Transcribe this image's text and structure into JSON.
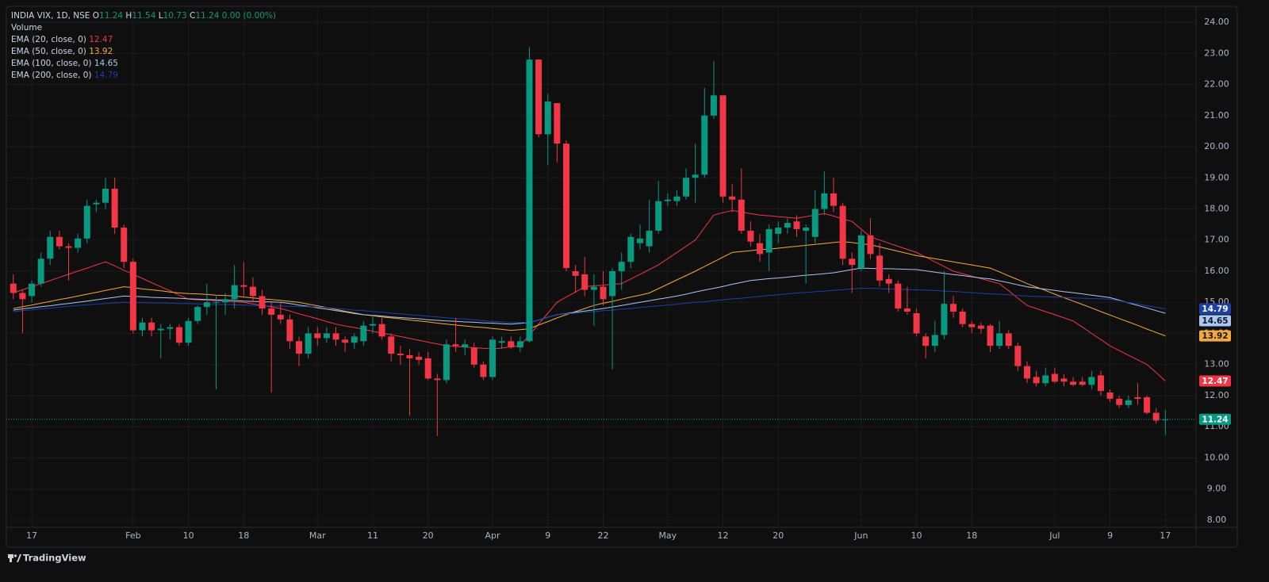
{
  "header": {
    "symbol": "INDIA VIX, 1D, NSE",
    "open_label": "O",
    "high_label": "H",
    "low_label": "L",
    "close_label": "C",
    "change": "0.00 (0.00%)",
    "volume": "Volume"
  },
  "branding": "TradingView",
  "chart_data": {
    "type": "candlestick",
    "categories": [
      null,
      null,
      "17",
      null,
      null,
      null,
      null,
      null,
      null,
      null,
      null,
      null,
      null,
      "Feb",
      null,
      null,
      null,
      null,
      null,
      "10",
      null,
      null,
      null,
      null,
      null,
      "18",
      null,
      null,
      null,
      null,
      null,
      null,
      null,
      "Mar",
      null,
      null,
      null,
      null,
      null,
      "11",
      null,
      null,
      null,
      null,
      null,
      "20",
      null,
      null,
      null,
      null,
      null,
      null,
      "Apr",
      null,
      null,
      null,
      null,
      null,
      "9",
      null,
      null,
      null,
      null,
      null,
      "22",
      null,
      null,
      null,
      null,
      null,
      null,
      "May",
      null,
      null,
      null,
      null,
      null,
      "12",
      null,
      null,
      null,
      null,
      null,
      "20",
      null,
      null,
      null,
      null,
      null,
      null,
      null,
      null,
      "Jun",
      null,
      null,
      null,
      null,
      null,
      "10",
      null,
      null,
      null,
      null,
      null,
      "18",
      null,
      null,
      null,
      null,
      null,
      null,
      null,
      null,
      "Jul",
      null,
      null,
      null,
      null,
      null,
      "9",
      null,
      null,
      null,
      null,
      null,
      "17"
    ],
    "open": [
      15.6,
      15.3,
      15.2,
      15.6,
      16.4,
      17.1,
      16.8,
      16.75,
      17.05,
      18.15,
      18.2,
      18.65,
      17.4,
      16.3,
      14.1,
      14.35,
      14.1,
      14.15,
      14.2,
      13.7,
      14.4,
      14.85,
      15.0,
      15.0,
      15.1,
      15.55,
      15.5,
      15.2,
      14.8,
      14.6,
      14.45,
      13.75,
      13.35,
      14.0,
      13.85,
      14.0,
      13.8,
      13.7,
      13.75,
      14.25,
      14.3,
      13.9,
      13.35,
      13.3,
      13.25,
      13.2,
      12.55,
      12.5,
      13.65,
      13.55,
      13.55,
      13.0,
      12.6,
      13.7,
      13.75,
      13.55,
      13.75,
      22.8,
      20.4,
      21.4,
      20.1,
      16.0,
      15.9,
      15.4,
      15.5,
      15.2,
      16.0,
      16.3,
      16.9,
      16.8,
      17.3,
      18.25,
      18.25,
      18.4,
      19.0,
      19.1,
      21.0,
      21.65,
      18.4,
      18.3,
      17.3,
      16.9,
      16.6,
      17.2,
      17.4,
      17.6,
      17.3,
      17.1,
      18.0,
      18.5,
      18.1,
      16.4,
      16.1,
      17.15,
      16.5,
      15.75,
      15.6,
      14.8,
      14.65,
      13.9,
      13.6,
      13.95,
      14.95,
      14.7,
      14.3,
      14.25,
      14.25,
      13.6,
      14.0,
      13.6,
      12.95,
      12.6,
      12.4,
      12.7,
      12.55,
      12.45,
      12.45,
      12.35,
      12.65,
      12.1,
      11.9,
      11.7,
      11.95,
      11.95,
      11.45,
      11.24
    ],
    "high": [
      15.9,
      15.4,
      15.7,
      16.6,
      17.3,
      17.3,
      16.9,
      17.2,
      18.3,
      18.3,
      19.0,
      19.0,
      17.5,
      16.4,
      14.5,
      14.5,
      14.3,
      14.3,
      14.3,
      14.5,
      14.9,
      15.6,
      15.2,
      15.3,
      16.2,
      16.3,
      15.8,
      15.4,
      15.0,
      15.0,
      14.6,
      13.9,
      14.2,
      14.2,
      14.2,
      14.2,
      13.9,
      14.0,
      14.4,
      14.6,
      14.5,
      14.0,
      13.6,
      13.5,
      13.4,
      13.4,
      12.7,
      13.8,
      14.5,
      13.8,
      13.7,
      13.1,
      13.9,
      13.9,
      13.9,
      13.9,
      23.2,
      22.8,
      21.7,
      21.4,
      20.2,
      16.2,
      16.45,
      15.9,
      16.0,
      16.1,
      16.6,
      17.2,
      17.5,
      18.3,
      18.9,
      18.5,
      18.6,
      19.3,
      20.1,
      21.9,
      22.75,
      21.65,
      18.8,
      19.3,
      17.6,
      17.2,
      17.5,
      17.6,
      17.7,
      17.8,
      17.5,
      18.6,
      19.2,
      19.0,
      18.2,
      16.6,
      17.3,
      17.7,
      16.9,
      15.9,
      15.7,
      15.5,
      14.8,
      14.0,
      14.4,
      16.0,
      15.2,
      14.8,
      14.4,
      14.35,
      14.3,
      14.4,
      14.1,
      13.7,
      13.1,
      12.8,
      12.9,
      12.9,
      12.7,
      12.6,
      12.6,
      12.8,
      12.8,
      12.2,
      12.0,
      12.0,
      12.4,
      12.0,
      11.6,
      11.54
    ],
    "low": [
      15.1,
      14.0,
      15.0,
      15.5,
      16.2,
      16.7,
      15.7,
      16.6,
      16.9,
      17.9,
      18.0,
      17.2,
      16.1,
      14.0,
      13.9,
      13.9,
      13.2,
      13.8,
      13.6,
      13.6,
      14.3,
      14.6,
      12.2,
      14.6,
      14.8,
      15.2,
      15.0,
      14.6,
      12.1,
      14.3,
      13.5,
      12.95,
      13.2,
      13.6,
      13.7,
      13.6,
      13.4,
      13.5,
      13.6,
      14.0,
      13.8,
      13.1,
      13.0,
      11.35,
      13.0,
      12.5,
      10.7,
      12.4,
      13.4,
      13.3,
      12.9,
      12.5,
      12.5,
      13.5,
      13.5,
      13.4,
      13.7,
      20.3,
      19.4,
      19.5,
      16.0,
      15.3,
      15.2,
      14.25,
      14.9,
      12.85,
      15.4,
      16.1,
      16.7,
      16.6,
      17.2,
      18.1,
      18.1,
      18.3,
      18.2,
      19.0,
      20.9,
      18.2,
      17.9,
      17.2,
      16.8,
      16.3,
      16.0,
      16.9,
      17.2,
      17.1,
      15.6,
      16.9,
      17.8,
      17.9,
      16.2,
      15.3,
      16.0,
      16.4,
      15.5,
      15.3,
      14.7,
      14.6,
      13.9,
      13.2,
      13.4,
      13.8,
      14.5,
      14.2,
      14.0,
      14.0,
      13.4,
      13.5,
      13.5,
      12.8,
      12.4,
      12.3,
      12.3,
      12.4,
      12.3,
      12.3,
      12.3,
      12.2,
      12.0,
      11.8,
      11.6,
      11.6,
      11.7,
      11.4,
      11.1,
      10.73
    ],
    "close": [
      15.3,
      15.1,
      15.6,
      16.4,
      17.1,
      16.8,
      16.75,
      17.05,
      18.1,
      18.2,
      18.65,
      17.4,
      16.3,
      14.1,
      14.35,
      14.1,
      14.15,
      14.2,
      13.7,
      14.4,
      14.85,
      15.0,
      15.0,
      15.1,
      15.55,
      15.5,
      15.2,
      14.8,
      14.6,
      14.45,
      13.75,
      13.35,
      14.0,
      13.85,
      14.0,
      13.8,
      13.7,
      13.9,
      14.25,
      14.3,
      13.9,
      13.35,
      13.3,
      13.2,
      13.15,
      12.55,
      12.5,
      13.65,
      13.6,
      13.65,
      13.0,
      12.6,
      13.8,
      13.75,
      13.55,
      13.75,
      22.8,
      20.4,
      21.45,
      20.1,
      16.1,
      15.85,
      15.4,
      15.5,
      15.1,
      16.0,
      16.3,
      17.1,
      17.05,
      17.3,
      18.25,
      18.3,
      18.4,
      19.0,
      19.1,
      21.0,
      21.65,
      18.4,
      18.3,
      17.3,
      16.95,
      16.55,
      17.35,
      17.4,
      17.55,
      17.35,
      17.4,
      18.0,
      18.5,
      18.1,
      16.4,
      16.2,
      17.15,
      16.55,
      15.7,
      15.6,
      14.8,
      14.7,
      14.0,
      13.6,
      13.95,
      14.95,
      14.7,
      14.3,
      14.2,
      14.15,
      13.6,
      14.0,
      13.6,
      12.95,
      12.55,
      12.4,
      12.65,
      12.45,
      12.45,
      12.35,
      12.35,
      12.6,
      12.15,
      11.9,
      11.7,
      11.85,
      11.9,
      11.45,
      11.2,
      11.24
    ],
    "up_color": "#089981",
    "down_color": "#f23645",
    "series": [
      {
        "name": "EMA (20, close, 0)",
        "color": "#f23645",
        "values": [
          15.3,
          15.4,
          15.5,
          15.6,
          15.7,
          15.8,
          15.9,
          16.0,
          16.1,
          16.2,
          16.3,
          16.17,
          16.03,
          15.9,
          15.77,
          15.63,
          15.5,
          15.37,
          15.23,
          15.1,
          15.08,
          15.07,
          15.05,
          15.03,
          15.02,
          15.0,
          14.95,
          14.9,
          14.85,
          14.8,
          14.72,
          14.63,
          14.55,
          14.47,
          14.38,
          14.3,
          14.24,
          14.19,
          14.13,
          14.07,
          14.01,
          13.96,
          13.9,
          13.84,
          13.78,
          13.72,
          13.66,
          13.6,
          13.58,
          13.56,
          13.54,
          13.52,
          13.5,
          13.53,
          13.57,
          13.6,
          13.95,
          14.3,
          14.65,
          15.0,
          15.17,
          15.33,
          15.5,
          15.53,
          15.55,
          15.58,
          15.6,
          15.75,
          15.9,
          16.05,
          16.2,
          16.4,
          16.6,
          16.8,
          17.0,
          17.4,
          17.8,
          17.88,
          17.95,
          17.9,
          17.85,
          17.8,
          17.78,
          17.75,
          17.73,
          17.7,
          17.75,
          17.8,
          17.85,
          17.77,
          17.68,
          17.6,
          17.35,
          17.1,
          17.0,
          16.9,
          16.8,
          16.7,
          16.6,
          16.45,
          16.3,
          16.15,
          16.0,
          15.92,
          15.84,
          15.76,
          15.68,
          15.6,
          15.37,
          15.13,
          14.9,
          14.8,
          14.7,
          14.6,
          14.5,
          14.4,
          14.2,
          14.0,
          13.8,
          13.6,
          13.45,
          13.3,
          13.15,
          13.0,
          12.74,
          12.47
        ]
      },
      {
        "name": "EMA (50, close, 0)",
        "color": "#f5a93b",
        "values": [
          14.8,
          14.86,
          14.91,
          14.97,
          15.03,
          15.09,
          15.14,
          15.2,
          15.26,
          15.32,
          15.38,
          15.44,
          15.5,
          15.47,
          15.43,
          15.4,
          15.37,
          15.33,
          15.3,
          15.28,
          15.27,
          15.25,
          15.23,
          15.22,
          15.2,
          15.17,
          15.14,
          15.11,
          15.09,
          15.06,
          15.03,
          15.0,
          14.94,
          14.89,
          14.83,
          14.77,
          14.71,
          14.66,
          14.6,
          14.57,
          14.53,
          14.5,
          14.47,
          14.43,
          14.4,
          14.37,
          14.33,
          14.3,
          14.27,
          14.24,
          14.21,
          14.19,
          14.16,
          14.13,
          14.1,
          14.12,
          14.15,
          14.27,
          14.38,
          14.5,
          14.6,
          14.7,
          14.8,
          14.9,
          14.97,
          15.03,
          15.1,
          15.17,
          15.23,
          15.3,
          15.44,
          15.58,
          15.72,
          15.86,
          16.0,
          16.15,
          16.3,
          16.45,
          16.6,
          16.63,
          16.66,
          16.69,
          16.71,
          16.74,
          16.77,
          16.8,
          16.83,
          16.86,
          16.89,
          16.92,
          16.95,
          16.92,
          16.88,
          16.85,
          16.78,
          16.71,
          16.64,
          16.57,
          16.5,
          16.45,
          16.4,
          16.35,
          16.3,
          16.25,
          16.2,
          16.15,
          16.1,
          15.98,
          15.85,
          15.73,
          15.6,
          15.49,
          15.38,
          15.26,
          15.15,
          15.04,
          14.93,
          14.82,
          14.7,
          14.59,
          14.48,
          14.37,
          14.26,
          14.14,
          14.03,
          13.92
        ]
      },
      {
        "name": "EMA (100, close, 0)",
        "color": "#a9c7f2",
        "values": [
          14.75,
          14.79,
          14.82,
          14.86,
          14.89,
          14.93,
          14.96,
          15.0,
          15.04,
          15.08,
          15.12,
          15.16,
          15.2,
          15.19,
          15.18,
          15.16,
          15.15,
          15.14,
          15.13,
          15.11,
          15.1,
          15.09,
          15.08,
          15.07,
          15.06,
          15.04,
          15.03,
          15.02,
          15.01,
          15.0,
          14.96,
          14.91,
          14.87,
          14.82,
          14.78,
          14.73,
          14.69,
          14.64,
          14.6,
          14.58,
          14.56,
          14.53,
          14.51,
          14.49,
          14.47,
          14.44,
          14.42,
          14.4,
          14.39,
          14.37,
          14.36,
          14.34,
          14.33,
          14.31,
          14.3,
          14.32,
          14.35,
          14.43,
          14.52,
          14.6,
          14.64,
          14.68,
          14.72,
          14.76,
          14.8,
          14.85,
          14.9,
          14.95,
          15.0,
          15.05,
          15.1,
          15.15,
          15.2,
          15.26,
          15.33,
          15.39,
          15.45,
          15.51,
          15.58,
          15.64,
          15.7,
          15.73,
          15.76,
          15.78,
          15.81,
          15.84,
          15.87,
          15.89,
          15.92,
          15.95,
          16.0,
          16.05,
          16.1,
          16.09,
          16.08,
          16.08,
          16.07,
          16.06,
          16.05,
          16.01,
          15.97,
          15.93,
          15.89,
          15.86,
          15.82,
          15.78,
          15.75,
          15.69,
          15.63,
          15.56,
          15.5,
          15.46,
          15.42,
          15.38,
          15.34,
          15.31,
          15.27,
          15.23,
          15.19,
          15.15,
          15.07,
          14.98,
          14.9,
          14.82,
          14.73,
          14.65
        ]
      },
      {
        "name": "EMA (200, close, 0)",
        "color": "#1f3fa8",
        "values": [
          14.7,
          14.73,
          14.76,
          14.79,
          14.81,
          14.84,
          14.87,
          14.9,
          14.92,
          14.94,
          14.96,
          14.98,
          15.0,
          14.99,
          14.99,
          14.98,
          14.98,
          14.97,
          14.96,
          14.96,
          14.95,
          14.94,
          14.93,
          14.93,
          14.92,
          14.91,
          14.9,
          14.89,
          14.88,
          14.88,
          14.87,
          14.86,
          14.86,
          14.85,
          14.83,
          14.8,
          14.78,
          14.75,
          14.73,
          14.7,
          14.68,
          14.65,
          14.63,
          14.6,
          14.58,
          14.55,
          14.53,
          14.5,
          14.48,
          14.46,
          14.44,
          14.41,
          14.39,
          14.37,
          14.35,
          14.35,
          14.35,
          14.43,
          14.52,
          14.6,
          14.63,
          14.65,
          14.68,
          14.7,
          14.73,
          14.75,
          14.78,
          14.8,
          14.83,
          14.86,
          14.89,
          14.91,
          14.94,
          14.97,
          15.0,
          15.02,
          15.05,
          15.08,
          15.11,
          15.13,
          15.16,
          15.19,
          15.22,
          15.24,
          15.27,
          15.3,
          15.32,
          15.34,
          15.36,
          15.38,
          15.41,
          15.43,
          15.45,
          15.45,
          15.44,
          15.43,
          15.42,
          15.41,
          15.4,
          15.39,
          15.38,
          15.36,
          15.35,
          15.33,
          15.31,
          15.29,
          15.27,
          15.26,
          15.24,
          15.22,
          15.2,
          15.19,
          15.18,
          15.17,
          15.16,
          15.14,
          15.13,
          15.12,
          15.11,
          15.1,
          15.05,
          14.99,
          14.94,
          14.89,
          14.84,
          14.79
        ]
      }
    ],
    "ylim": [
      7.77,
      24.51
    ],
    "yticks": [
      {
        "value": 8,
        "label": "8.00"
      },
      {
        "value": 9,
        "label": "9.00"
      },
      {
        "value": 10,
        "label": "10.00"
      },
      {
        "value": 11,
        "label": "11.00"
      },
      {
        "value": 12,
        "label": "12.00"
      },
      {
        "value": 13,
        "label": "13.00"
      },
      {
        "value": 14,
        "label": "14.00"
      },
      {
        "value": 15,
        "label": "15.00"
      },
      {
        "value": 16,
        "label": "16.00"
      },
      {
        "value": 17,
        "label": "17.00"
      },
      {
        "value": 18,
        "label": "18.00"
      },
      {
        "value": 19,
        "label": "19.00"
      },
      {
        "value": 20,
        "label": "20.00"
      },
      {
        "value": 21,
        "label": "21.00"
      },
      {
        "value": 22,
        "label": "22.00"
      },
      {
        "value": 23,
        "label": "23.00"
      },
      {
        "value": 24,
        "label": "24.00"
      }
    ],
    "grid": true
  }
}
